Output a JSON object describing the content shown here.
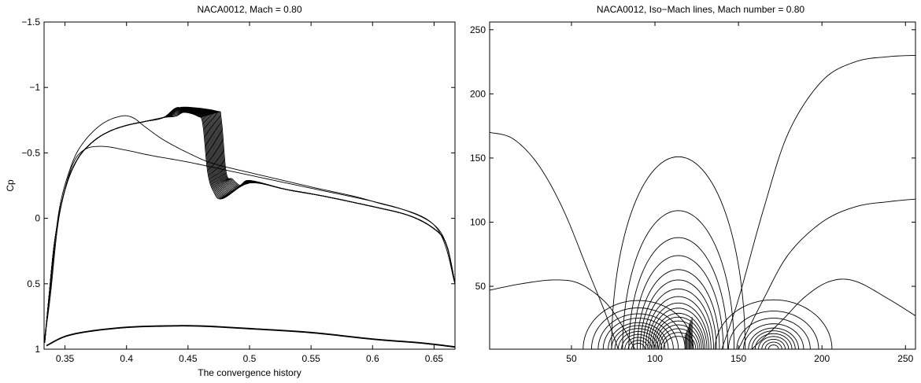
{
  "chart_data": [
    {
      "type": "line",
      "title": "NACA0012, Mach = 0.80",
      "xlabel": "The convergence history",
      "ylabel": "Cp",
      "xlim": [
        0.333,
        0.667
      ],
      "ylim": [
        1.0,
        -1.5
      ],
      "y_reversed": true,
      "x_ticks": [
        0.35,
        0.4,
        0.45,
        0.5,
        0.55,
        0.6,
        0.65
      ],
      "x_tick_labels": [
        "0.35",
        "0.4",
        "0.45",
        "0.5",
        "0.55",
        "0.6",
        "0.65"
      ],
      "y_ticks": [
        -1.5,
        -1.0,
        -0.5,
        0,
        0.5,
        1.0
      ],
      "y_tick_labels": [
        "−1.5",
        "−1",
        "−0.5",
        "0",
        "0.5",
        "1"
      ],
      "grid": false,
      "upper_family": {
        "count": 22,
        "shock_x_start": 0.462,
        "shock_x_end": 0.477,
        "plateau_start": -0.78,
        "plateau_end": -0.82,
        "post_shock_start": -0.18,
        "post_shock_end": -0.28
      },
      "early_curves": [
        {
          "x": [
            0.333,
            0.338,
            0.345,
            0.355,
            0.365,
            0.38,
            0.4,
            0.42,
            0.45,
            0.48,
            0.5,
            0.55,
            0.6,
            0.63,
            0.65,
            0.66,
            0.667
          ],
          "y": [
            0.95,
            0.6,
            0.0,
            -0.38,
            -0.52,
            -0.55,
            -0.52,
            -0.48,
            -0.43,
            -0.37,
            -0.33,
            -0.23,
            -0.13,
            -0.05,
            0.05,
            0.2,
            0.5
          ]
        },
        {
          "x": [
            0.333,
            0.338,
            0.345,
            0.355,
            0.365,
            0.38,
            0.395,
            0.405,
            0.415,
            0.43,
            0.45,
            0.47,
            0.5,
            0.55,
            0.6,
            0.65,
            0.667
          ],
          "y": [
            0.95,
            0.55,
            -0.05,
            -0.4,
            -0.58,
            -0.72,
            -0.78,
            -0.77,
            -0.7,
            -0.6,
            -0.5,
            -0.42,
            -0.35,
            -0.24,
            -0.13,
            0.05,
            0.5
          ]
        }
      ],
      "lower_curve": {
        "x": [
          0.335,
          0.35,
          0.37,
          0.4,
          0.43,
          0.46,
          0.5,
          0.55,
          0.6,
          0.64,
          0.667
        ],
        "y": [
          0.97,
          0.9,
          0.86,
          0.83,
          0.82,
          0.82,
          0.84,
          0.87,
          0.92,
          0.95,
          0.98
        ]
      }
    },
    {
      "type": "contour",
      "title": "NACA0012, Iso−Mach lines, Mach number = 0.80",
      "xlabel": "",
      "ylabel": "",
      "xlim": [
        1,
        256
      ],
      "ylim": [
        1,
        256
      ],
      "x_ticks": [
        50,
        100,
        150,
        200,
        250
      ],
      "x_tick_labels": [
        "50",
        "100",
        "150",
        "200",
        "250"
      ],
      "y_ticks": [
        50,
        100,
        150,
        200,
        250
      ],
      "y_tick_labels": [
        "50",
        "100",
        "150",
        "200",
        "250"
      ],
      "grid": false,
      "contours": {
        "left_bubble": {
          "cx": 90,
          "radii": [
            4,
            6,
            8,
            10,
            12,
            14,
            16,
            18,
            21,
            24,
            28,
            33
          ]
        },
        "center_bubble": {
          "cx": 114,
          "outer_radius_x": 40,
          "heights": [
            150,
            108,
            87,
            73,
            62,
            54,
            47,
            41,
            36,
            32,
            28,
            25,
            22,
            19,
            16,
            13,
            10
          ]
        },
        "right_bubble": {
          "cx": 171,
          "radii": [
            3,
            5,
            7,
            9,
            11,
            13,
            15,
            18,
            22,
            27,
            35
          ]
        },
        "outer_left": {
          "x": [
            1,
            20,
            40,
            55,
            70,
            80,
            88
          ],
          "y": [
            47,
            52,
            55,
            52,
            38,
            20,
            1
          ]
        },
        "outer_right": {
          "x": [
            158,
            175,
            190,
            205,
            220,
            240,
            256
          ],
          "y": [
            1,
            22,
            42,
            54,
            54,
            40,
            27
          ]
        },
        "far_left": {
          "x": [
            1,
            15,
            30,
            45,
            60,
            70,
            78
          ],
          "y": [
            170,
            165,
            145,
            110,
            62,
            30,
            1
          ]
        },
        "far_right_top": {
          "x": [
            140,
            150,
            165,
            180,
            200,
            220,
            240,
            256
          ],
          "y": [
            1,
            40,
            110,
            170,
            210,
            225,
            229,
            230
          ]
        },
        "far_right_mid": {
          "x": [
            150,
            165,
            180,
            200,
            220,
            240,
            256
          ],
          "y": [
            1,
            40,
            75,
            100,
            112,
            116,
            118
          ]
        }
      }
    }
  ]
}
